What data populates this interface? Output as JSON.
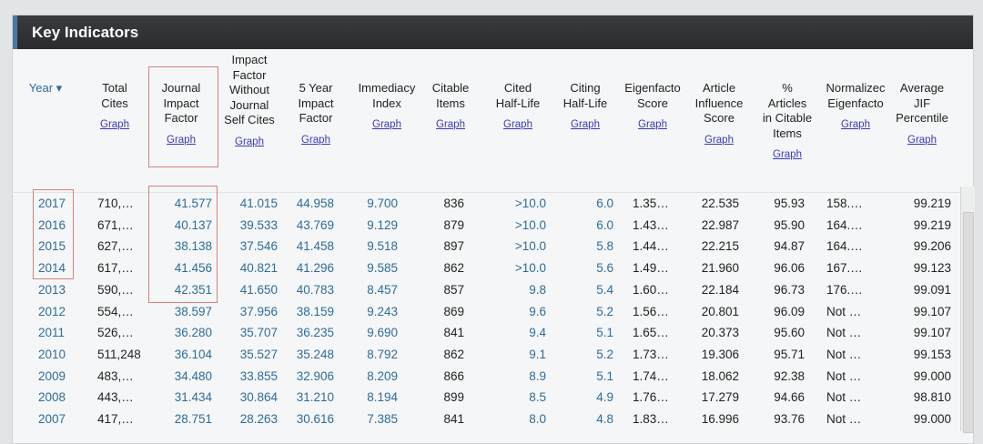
{
  "panel": {
    "title": "Key Indicators"
  },
  "graph_label": "Graph",
  "columns": [
    {
      "label": "Year ▾",
      "graph": false
    },
    {
      "label": "Total\nCites",
      "graph": true
    },
    {
      "label": "Journal\nImpact\nFactor",
      "graph": true
    },
    {
      "label": "Impact\nFactor\nWithout\nJournal\nSelf Cites",
      "graph": true
    },
    {
      "label": "5 Year\nImpact\nFactor",
      "graph": true
    },
    {
      "label": "Immediacy\nIndex",
      "graph": true
    },
    {
      "label": "Citable\nItems",
      "graph": true
    },
    {
      "label": "Cited\nHalf-Life",
      "graph": true
    },
    {
      "label": "Citing\nHalf-Life",
      "graph": true
    },
    {
      "label": "Eigenfacto\nScore",
      "graph": true
    },
    {
      "label": "Article\nInfluence\nScore",
      "graph": true
    },
    {
      "label": "%\nArticles\nin Citable\nItems",
      "graph": true
    },
    {
      "label": "Normalizec\nEigenfacto",
      "graph": true
    },
    {
      "label": "Average\nJIF\nPercentile",
      "graph": true
    }
  ],
  "rows": [
    [
      "2017",
      "710,…",
      "41.577",
      "41.015",
      "44.958",
      "9.700",
      "836",
      ">10.0",
      "6.0",
      "1.35…",
      "22.535",
      "95.93",
      "158.…",
      "99.219"
    ],
    [
      "2016",
      "671,…",
      "40.137",
      "39.533",
      "43.769",
      "9.129",
      "879",
      ">10.0",
      "6.0",
      "1.43…",
      "22.987",
      "95.90",
      "164.…",
      "99.219"
    ],
    [
      "2015",
      "627,…",
      "38.138",
      "37.546",
      "41.458",
      "9.518",
      "897",
      ">10.0",
      "5.8",
      "1.44…",
      "22.215",
      "94.87",
      "164.…",
      "99.206"
    ],
    [
      "2014",
      "617,…",
      "41.456",
      "40.821",
      "41.296",
      "9.585",
      "862",
      ">10.0",
      "5.6",
      "1.49…",
      "21.960",
      "96.06",
      "167.…",
      "99.123"
    ],
    [
      "2013",
      "590,…",
      "42.351",
      "41.650",
      "40.783",
      "8.457",
      "857",
      "9.8",
      "5.4",
      "1.60…",
      "22.184",
      "96.73",
      "176.…",
      "99.091"
    ],
    [
      "2012",
      "554,…",
      "38.597",
      "37.956",
      "38.159",
      "9.243",
      "869",
      "9.6",
      "5.2",
      "1.56…",
      "20.801",
      "96.09",
      "Not …",
      "99.107"
    ],
    [
      "2011",
      "526,…",
      "36.280",
      "35.707",
      "36.235",
      "9.690",
      "841",
      "9.4",
      "5.1",
      "1.65…",
      "20.373",
      "95.60",
      "Not …",
      "99.107"
    ],
    [
      "2010",
      "511,248",
      "36.104",
      "35.527",
      "35.248",
      "8.792",
      "862",
      "9.1",
      "5.2",
      "1.73…",
      "19.306",
      "95.71",
      "Not …",
      "99.153"
    ],
    [
      "2009",
      "483,…",
      "34.480",
      "33.855",
      "32.906",
      "8.209",
      "866",
      "8.9",
      "5.1",
      "1.74…",
      "18.062",
      "92.38",
      "Not …",
      "99.000"
    ],
    [
      "2008",
      "443,…",
      "31.434",
      "30.864",
      "31.210",
      "8.194",
      "899",
      "8.5",
      "4.9",
      "1.76…",
      "17.279",
      "94.66",
      "Not …",
      "98.810"
    ],
    [
      "2007",
      "417,…",
      "28.751",
      "28.263",
      "30.616",
      "7.385",
      "841",
      "8.0",
      "4.8",
      "1.83…",
      "16.996",
      "93.76",
      "Not …",
      "99.000"
    ]
  ],
  "colors": {
    "link": "#3a3ab8",
    "value_blue": "#2e6c98",
    "highlight": "#d9807c",
    "header_bg": "#2f3032",
    "accent": "#4a78a8"
  }
}
